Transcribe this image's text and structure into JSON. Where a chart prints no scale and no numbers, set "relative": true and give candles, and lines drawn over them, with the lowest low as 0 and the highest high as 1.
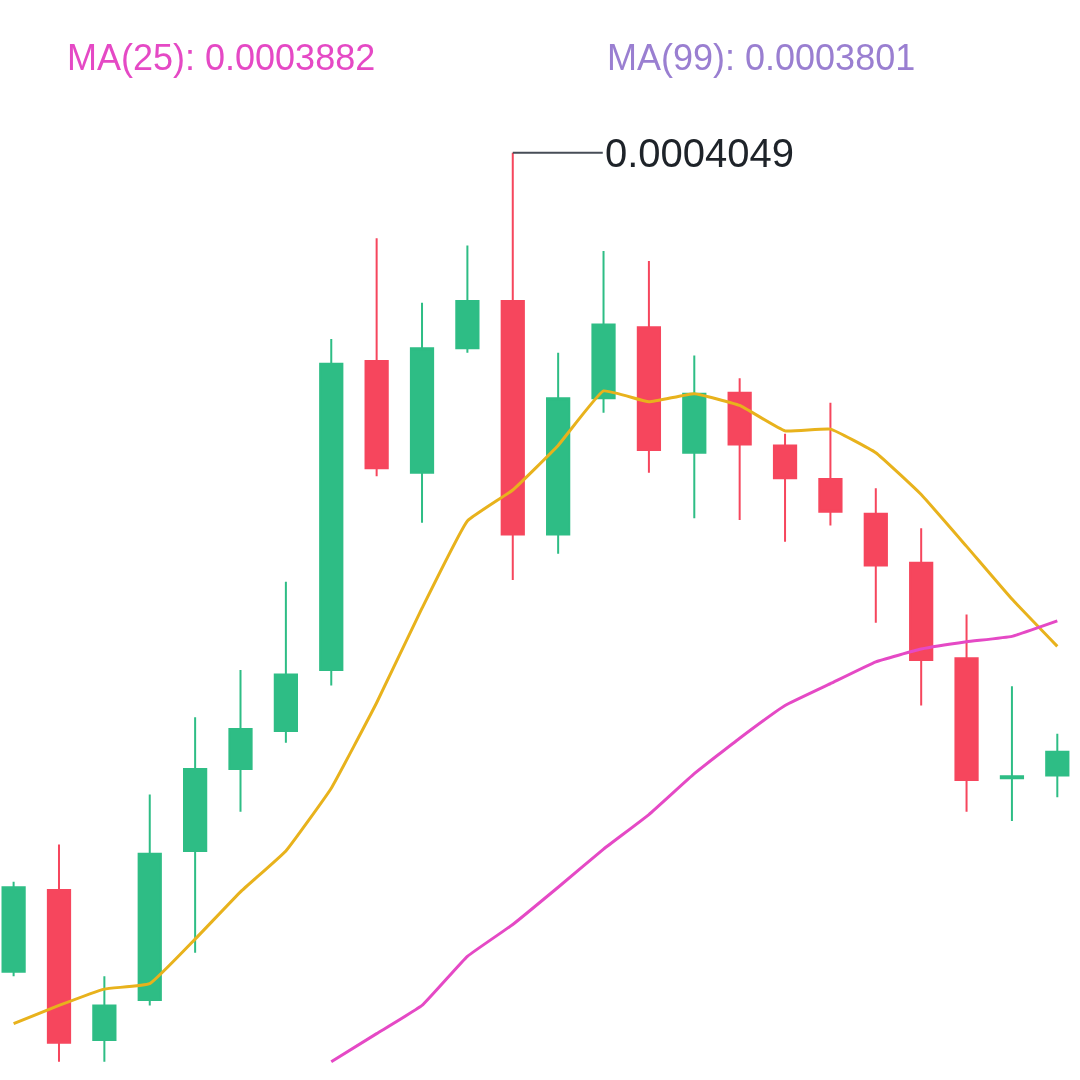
{
  "chart_data": {
    "type": "candlestick",
    "relative": true,
    "categories": [
      null,
      null,
      null,
      null,
      null,
      null,
      null,
      null,
      null,
      null,
      null,
      null,
      null,
      null,
      null,
      null,
      null,
      null,
      null,
      null,
      null,
      null,
      null,
      null
    ],
    "ohlc": [
      [
        0.099,
        0.198,
        0.094,
        0.192
      ],
      [
        0.189,
        0.239,
        0,
        0.021
      ],
      [
        0.024,
        0.094,
        0,
        0.062
      ],
      [
        0.068,
        0.294,
        0.062,
        0.229
      ],
      [
        0.232,
        0.379,
        0.12,
        0.322
      ],
      [
        0.322,
        0.431,
        0.275,
        0.366
      ],
      [
        0.364,
        0.528,
        0.351,
        0.426
      ],
      [
        0.431,
        0.795,
        0.414,
        0.768
      ],
      [
        0.771,
        0.906,
        0.644,
        0.653
      ],
      [
        0.648,
        0.835,
        0.593,
        0.785
      ],
      [
        0.785,
        0.898,
        0.78,
        0.837
      ],
      [
        0.837,
        1,
        0.53,
        0.58
      ],
      [
        0.58,
        0.78,
        0.559,
        0.73
      ],
      [
        0.73,
        0.892,
        0.714,
        0.811
      ],
      [
        0.808,
        0.881,
        0.648,
        0.673
      ],
      [
        0.67,
        0.777,
        0.598,
        0.735
      ],
      [
        0.736,
        0.752,
        0.596,
        0.679
      ],
      [
        0.678,
        0.691,
        0.572,
        0.642
      ],
      [
        0.641,
        0.725,
        0.59,
        0.605
      ],
      [
        0.603,
        0.631,
        0.483,
        0.546
      ],
      [
        0.549,
        0.587,
        0.392,
        0.442
      ],
      [
        0.444,
        0.492,
        0.275,
        0.31
      ],
      [
        0.312,
        0.413,
        0.265,
        0.314
      ],
      [
        0.315,
        0.361,
        0.291,
        0.341
      ]
    ],
    "colors": [
      "#2ebd85",
      "#f6465d",
      "#2ebd85",
      "#2ebd85",
      "#2ebd85",
      "#2ebd85",
      "#2ebd85",
      "#2ebd85",
      "#f6465d",
      "#2ebd85",
      "#2ebd85",
      "#f6465d",
      "#2ebd85",
      "#2ebd85",
      "#f6465d",
      "#2ebd85",
      "#f6465d",
      "#f6465d",
      "#f6465d",
      "#f6465d",
      "#f6465d",
      "#f6465d",
      "#2ebd85",
      "#2ebd85"
    ],
    "series": [
      {
        "type": "line",
        "color": "#e8b21c",
        "values": [
          0.042,
          0.062,
          0.08,
          0.086,
          0.135,
          0.187,
          0.232,
          0.301,
          0.395,
          0.499,
          0.595,
          0.629,
          0.678,
          0.738,
          0.726,
          0.735,
          0.722,
          0.694,
          0.696,
          0.67,
          0.624,
          0.567,
          0.509,
          0.457
        ]
      },
      {
        "type": "line",
        "color": "#e549c5",
        "values": [
          null,
          null,
          null,
          null,
          null,
          null,
          null,
          0,
          0.031,
          0.062,
          0.116,
          0.151,
          0.192,
          0.234,
          0.272,
          0.317,
          0.356,
          0.392,
          0.416,
          0.44,
          0.454,
          0.462,
          0.468,
          0.485
        ]
      }
    ],
    "annotations": [
      "MA(25): 0.0003882",
      "MA(99): 0.0003801",
      "0.0004049"
    ],
    "marker": "none",
    "line_style": "solid"
  }
}
